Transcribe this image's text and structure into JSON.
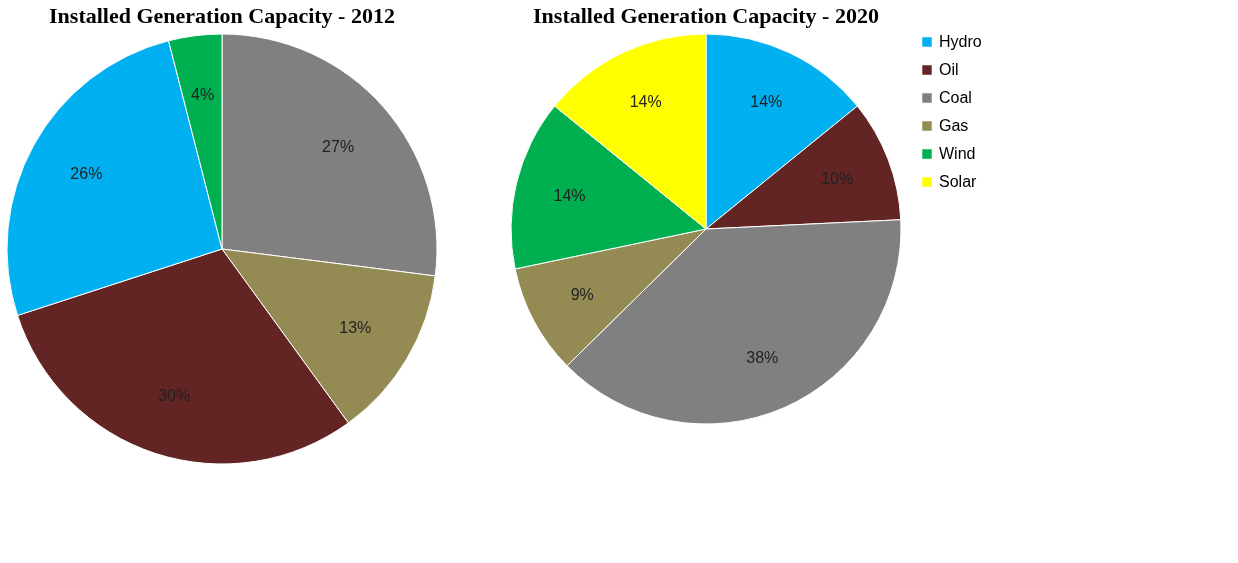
{
  "chart_data": [
    {
      "type": "pie",
      "title": "Installed Generation Capacity - 2012",
      "categories": [
        null,
        null,
        null,
        null,
        null
      ],
      "values": [
        27,
        13,
        30,
        26,
        4
      ],
      "colors": [
        "#808080",
        "#948a54",
        "#632523",
        "#00b0f0",
        "#00b050"
      ],
      "value_labels": [
        "27%",
        "13%",
        "30%",
        "26%",
        "4%"
      ]
    },
    {
      "type": "pie",
      "title": "Installed Generation Capacity - 2020",
      "categories": [
        "Hydro",
        "Oil",
        "Coal",
        "Gas",
        "Wind",
        "Solar"
      ],
      "values": [
        14,
        10,
        38,
        9,
        14,
        14
      ],
      "colors": [
        "#00b0f0",
        "#632523",
        "#808080",
        "#948a54",
        "#00b050",
        "#ffff00"
      ],
      "value_labels": [
        "14%",
        "10%",
        "38%",
        "9%",
        "14%",
        "14%"
      ],
      "legend": "right"
    }
  ]
}
